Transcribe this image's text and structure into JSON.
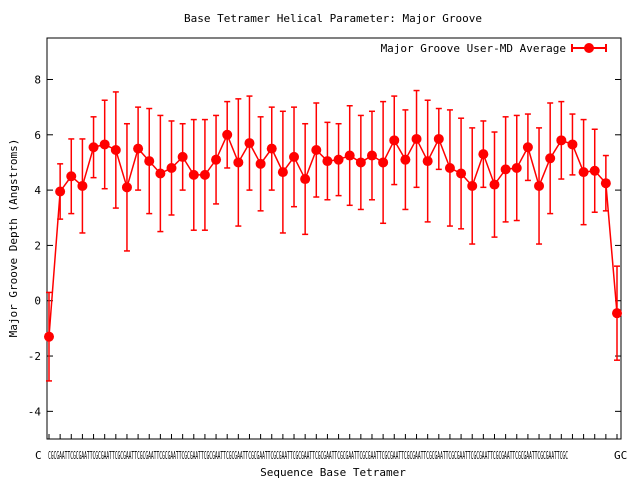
{
  "chart_data": {
    "type": "line",
    "title": "Base Tetramer Helical Parameter: Major Groove",
    "xlabel": "Sequence Base Tetramer",
    "ylabel": "Major Groove Depth (Angstroms)",
    "ylim": [
      -5,
      9.5
    ],
    "yticks": [
      -4,
      -2,
      0,
      2,
      4,
      6,
      8
    ],
    "grid": false,
    "legend_position": "top-right",
    "x_ticklabels_overlapping": "CGCGAATTCGCGAATTCGCGAATTCGCGAATTCGCGAATTCGCGAATTCGCGAATTCGCGAATTCGCGAATTCGCGAATTCGCGAATTCGCGAATTCGCGAATTCGCGAATTCGCGAATTCGCGAATTCGCGAATTCGCGAATTCGCGAATTCGCGAATTCGCGAATTCGCGAATTCGCGAATTCGC",
    "x_tick_first": "C",
    "x_tick_last": "GC",
    "series": [
      {
        "name": "Major Groove User-MD Average",
        "color": "#ff0000",
        "values": [
          -1.3,
          3.95,
          4.5,
          4.15,
          5.55,
          5.65,
          5.45,
          4.1,
          5.5,
          5.05,
          4.6,
          4.8,
          5.2,
          4.55,
          4.55,
          5.1,
          6.0,
          5.0,
          5.7,
          4.95,
          5.5,
          4.65,
          5.2,
          4.4,
          5.45,
          5.05,
          5.1,
          5.25,
          5.0,
          5.25,
          5.0,
          5.8,
          5.1,
          5.85,
          5.05,
          5.85,
          4.8,
          4.6,
          4.15,
          5.3,
          4.2,
          4.75,
          4.8,
          5.55,
          4.15,
          5.15,
          5.8,
          5.65,
          4.65,
          4.7,
          4.25,
          -0.45
        ],
        "errors": [
          1.6,
          1.0,
          1.35,
          1.7,
          1.1,
          1.6,
          2.1,
          2.3,
          1.5,
          1.9,
          2.1,
          1.7,
          1.2,
          2.0,
          2.0,
          1.6,
          1.2,
          2.3,
          1.7,
          1.7,
          1.5,
          2.2,
          1.8,
          2.0,
          1.7,
          1.4,
          1.3,
          1.8,
          1.7,
          1.6,
          2.2,
          1.6,
          1.8,
          1.75,
          2.2,
          1.1,
          2.1,
          2.0,
          2.1,
          1.2,
          1.9,
          1.9,
          1.9,
          1.2,
          2.1,
          2.0,
          1.4,
          1.1,
          1.9,
          1.5,
          1.0,
          1.7
        ]
      }
    ]
  }
}
